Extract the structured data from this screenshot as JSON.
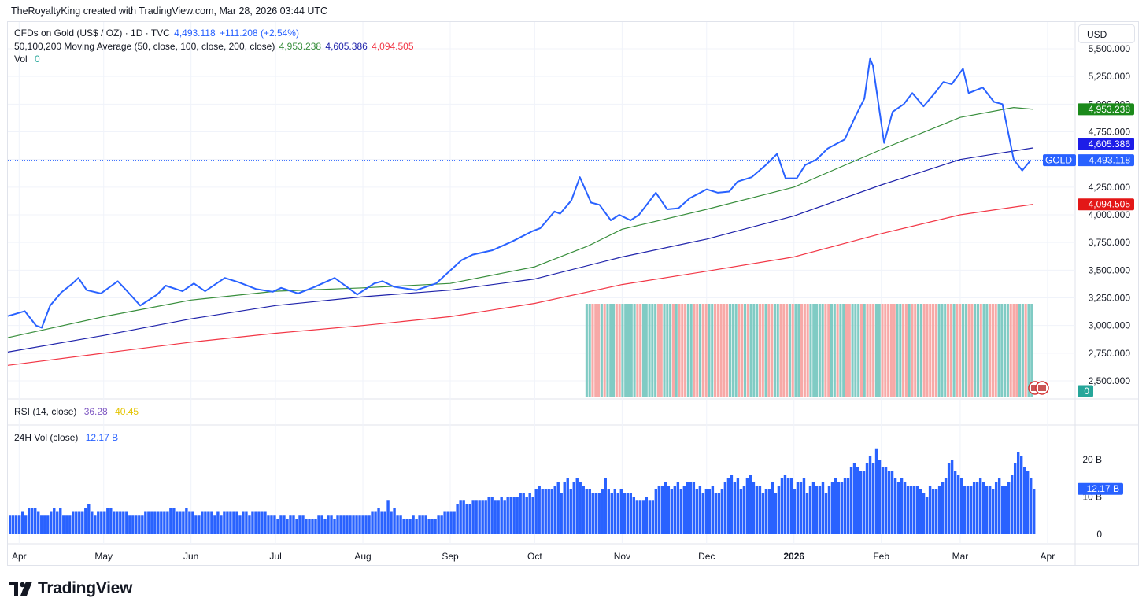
{
  "caption": "TheRoyaltyKing created with TradingView.com, Mar 28, 2026 03:44 UTC",
  "currency_button": "USD",
  "brand": "TradingView",
  "legend": {
    "symbol_title": "CFDs on Gold (US$ / OZ) · 1D · TVC",
    "symbol_price": "4,493.118",
    "symbol_change": "+111.208 (+2.54%)",
    "ma_title": "50,100,200 Moving Average (50, close, 100, close, 200, close)",
    "ma50": "4,953.238",
    "ma100": "4,605.386",
    "ma200": "4,094.505",
    "vol_title": "Vol",
    "vol_value": "0",
    "rsi_title": "RSI (14, close)",
    "rsi_value1": "36.28",
    "rsi_value2": "40.45",
    "vol24_title": "24H Vol (close)",
    "vol24_value": "12.17 B"
  },
  "price_labels": {
    "ma50": "4,953.238",
    "ma100": "4,605.386",
    "gold_tag": "GOLD",
    "gold": "4,493.118",
    "ma200": "4,094.505",
    "vol": "0",
    "vol24": "12.17 B"
  },
  "colors": {
    "price": "#2962ff",
    "ma50": "#388e3c",
    "ma100": "#1e22aa",
    "ma200": "#f23645",
    "vol_up": "#80cbc4",
    "vol_down": "#f7a9a7",
    "vol24_bar": "#2962ff",
    "rsi_line1": "#7e57c2",
    "rsi_line2": "#e4c400",
    "grid": "#f0f3fa"
  },
  "chart_data": [
    {
      "type": "line",
      "title": "CFDs on Gold (US$ / OZ) · 1D · TVC",
      "x_ticks": [
        "Apr",
        "May",
        "Jun",
        "Jul",
        "Aug",
        "Sep",
        "Oct",
        "Nov",
        "Dec",
        "2026",
        "Feb",
        "Mar",
        "Apr"
      ],
      "y_ticks": [
        "5,500.000",
        "5,250.000",
        "5,000.000",
        "4,750.000",
        "4,500.000",
        "4,250.000",
        "4,000.000",
        "3,750.000",
        "3,500.000",
        "3,250.000",
        "3,000.000",
        "2,750.000",
        "2,500.000"
      ],
      "ylim": [
        2400,
        5550
      ],
      "date_range": [
        "2025-03-28",
        "2026-03-27"
      ],
      "grid": true,
      "series": [
        {
          "name": "Gold",
          "points": [
            [
              "2025-03-28",
              3085
            ],
            [
              "2025-04-03",
              3130
            ],
            [
              "2025-04-07",
              3000
            ],
            [
              "2025-04-09",
              2980
            ],
            [
              "2025-04-12",
              3180
            ],
            [
              "2025-04-16",
              3300
            ],
            [
              "2025-04-20",
              3380
            ],
            [
              "2025-04-22",
              3430
            ],
            [
              "2025-04-25",
              3320
            ],
            [
              "2025-04-30",
              3290
            ],
            [
              "2025-05-06",
              3400
            ],
            [
              "2025-05-09",
              3320
            ],
            [
              "2025-05-14",
              3180
            ],
            [
              "2025-05-20",
              3280
            ],
            [
              "2025-05-23",
              3360
            ],
            [
              "2025-05-29",
              3310
            ],
            [
              "2025-06-02",
              3380
            ],
            [
              "2025-06-06",
              3310
            ],
            [
              "2025-06-13",
              3430
            ],
            [
              "2025-06-18",
              3390
            ],
            [
              "2025-06-24",
              3330
            ],
            [
              "2025-06-30",
              3305
            ],
            [
              "2025-07-03",
              3340
            ],
            [
              "2025-07-09",
              3290
            ],
            [
              "2025-07-15",
              3350
            ],
            [
              "2025-07-22",
              3430
            ],
            [
              "2025-07-30",
              3280
            ],
            [
              "2025-08-05",
              3380
            ],
            [
              "2025-08-08",
              3400
            ],
            [
              "2025-08-12",
              3350
            ],
            [
              "2025-08-20",
              3320
            ],
            [
              "2025-08-27",
              3380
            ],
            [
              "2025-09-02",
              3520
            ],
            [
              "2025-09-05",
              3590
            ],
            [
              "2025-09-09",
              3640
            ],
            [
              "2025-09-16",
              3680
            ],
            [
              "2025-09-23",
              3760
            ],
            [
              "2025-09-30",
              3850
            ],
            [
              "2025-10-03",
              3880
            ],
            [
              "2025-10-08",
              4030
            ],
            [
              "2025-10-10",
              4010
            ],
            [
              "2025-10-14",
              4130
            ],
            [
              "2025-10-17",
              4340
            ],
            [
              "2025-10-21",
              4110
            ],
            [
              "2025-10-24",
              4090
            ],
            [
              "2025-10-28",
              3950
            ],
            [
              "2025-10-31",
              4000
            ],
            [
              "2025-11-04",
              3950
            ],
            [
              "2025-11-07",
              4000
            ],
            [
              "2025-11-13",
              4200
            ],
            [
              "2025-11-17",
              4050
            ],
            [
              "2025-11-21",
              4060
            ],
            [
              "2025-11-25",
              4150
            ],
            [
              "2025-12-01",
              4230
            ],
            [
              "2025-12-05",
              4200
            ],
            [
              "2025-12-09",
              4210
            ],
            [
              "2025-12-12",
              4300
            ],
            [
              "2025-12-17",
              4340
            ],
            [
              "2025-12-22",
              4450
            ],
            [
              "2025-12-26",
              4550
            ],
            [
              "2025-12-29",
              4330
            ],
            [
              "2026-01-02",
              4330
            ],
            [
              "2026-01-05",
              4450
            ],
            [
              "2026-01-09",
              4500
            ],
            [
              "2026-01-13",
              4600
            ],
            [
              "2026-01-19",
              4680
            ],
            [
              "2026-01-23",
              4900
            ],
            [
              "2026-01-26",
              5050
            ],
            [
              "2026-01-28",
              5410
            ],
            [
              "2026-01-29",
              5350
            ],
            [
              "2026-02-02",
              4650
            ],
            [
              "2026-02-05",
              4930
            ],
            [
              "2026-02-09",
              5000
            ],
            [
              "2026-02-12",
              5100
            ],
            [
              "2026-02-16",
              4980
            ],
            [
              "2026-02-20",
              5100
            ],
            [
              "2026-02-23",
              5200
            ],
            [
              "2026-02-26",
              5180
            ],
            [
              "2026-03-02",
              5320
            ],
            [
              "2026-03-04",
              5100
            ],
            [
              "2026-03-09",
              5150
            ],
            [
              "2026-03-13",
              5020
            ],
            [
              "2026-03-16",
              5000
            ],
            [
              "2026-03-20",
              4500
            ],
            [
              "2026-03-23",
              4400
            ],
            [
              "2026-03-26",
              4493
            ]
          ]
        },
        {
          "name": "MA 50",
          "points": [
            [
              "2025-03-28",
              2890
            ],
            [
              "2025-05-01",
              3080
            ],
            [
              "2025-06-01",
              3230
            ],
            [
              "2025-07-01",
              3310
            ],
            [
              "2025-08-01",
              3340
            ],
            [
              "2025-09-01",
              3380
            ],
            [
              "2025-10-01",
              3530
            ],
            [
              "2025-10-20",
              3720
            ],
            [
              "2025-11-01",
              3870
            ],
            [
              "2025-12-01",
              4050
            ],
            [
              "2026-01-01",
              4250
            ],
            [
              "2026-02-01",
              4590
            ],
            [
              "2026-03-01",
              4880
            ],
            [
              "2026-03-20",
              4970
            ],
            [
              "2026-03-27",
              4953
            ]
          ]
        },
        {
          "name": "MA 100",
          "points": [
            [
              "2025-03-28",
              2760
            ],
            [
              "2025-05-01",
              2910
            ],
            [
              "2025-06-01",
              3060
            ],
            [
              "2025-07-01",
              3180
            ],
            [
              "2025-08-01",
              3260
            ],
            [
              "2025-09-01",
              3320
            ],
            [
              "2025-10-01",
              3420
            ],
            [
              "2025-11-01",
              3620
            ],
            [
              "2025-12-01",
              3780
            ],
            [
              "2026-01-01",
              3990
            ],
            [
              "2026-02-01",
              4270
            ],
            [
              "2026-03-01",
              4500
            ],
            [
              "2026-03-27",
              4605
            ]
          ]
        },
        {
          "name": "MA 200",
          "points": [
            [
              "2025-03-28",
              2640
            ],
            [
              "2025-05-01",
              2750
            ],
            [
              "2025-06-01",
              2850
            ],
            [
              "2025-07-01",
              2930
            ],
            [
              "2025-08-01",
              3000
            ],
            [
              "2025-09-01",
              3080
            ],
            [
              "2025-10-01",
              3200
            ],
            [
              "2025-11-01",
              3370
            ],
            [
              "2025-12-01",
              3490
            ],
            [
              "2026-01-01",
              3620
            ],
            [
              "2026-02-01",
              3830
            ],
            [
              "2026-03-01",
              4000
            ],
            [
              "2026-03-27",
              4095
            ]
          ]
        }
      ]
    },
    {
      "type": "bar",
      "title": "24H Vol (close)",
      "y_ticks": [
        "20 B",
        "10 B",
        "0"
      ],
      "ylim": [
        0,
        30
      ],
      "unit": "B",
      "values": [
        5,
        5,
        5,
        5,
        6,
        5,
        7,
        7,
        7,
        6,
        5,
        5,
        5,
        6,
        7,
        6,
        7,
        5,
        5,
        5,
        6,
        6,
        6,
        6,
        7,
        8,
        6,
        5,
        6,
        6,
        6,
        7,
        7,
        6,
        6,
        6,
        6,
        6,
        5,
        5,
        5,
        5,
        5,
        6,
        6,
        6,
        6,
        6,
        6,
        6,
        6,
        7,
        7,
        6,
        6,
        6,
        7,
        6,
        6,
        5,
        5,
        6,
        6,
        6,
        6,
        5,
        6,
        5,
        6,
        6,
        6,
        6,
        6,
        5,
        6,
        6,
        5,
        6,
        6,
        6,
        6,
        6,
        5,
        5,
        5,
        4,
        5,
        5,
        4,
        5,
        5,
        4,
        5,
        5,
        4,
        4,
        4,
        4,
        5,
        5,
        4,
        5,
        5,
        4,
        5,
        5,
        5,
        5,
        5,
        5,
        5,
        5,
        5,
        5,
        5,
        6,
        6,
        7,
        6,
        6,
        9,
        6,
        7,
        5,
        5,
        4,
        4,
        4,
        5,
        4,
        5,
        5,
        5,
        4,
        4,
        4,
        5,
        5,
        6,
        6,
        6,
        6,
        8,
        9,
        9,
        8,
        8,
        9,
        9,
        9,
        9,
        9,
        10,
        10,
        9,
        9,
        10,
        9,
        10,
        10,
        10,
        10,
        11,
        11,
        10,
        11,
        10,
        12,
        13,
        12,
        12,
        12,
        12,
        13,
        14,
        11,
        14,
        15,
        12,
        14,
        15,
        14,
        13,
        12,
        12,
        11,
        11,
        11,
        12,
        15,
        12,
        11,
        12,
        11,
        12,
        11,
        11,
        11,
        10,
        9,
        9,
        9,
        10,
        9,
        9,
        12,
        13,
        13,
        14,
        13,
        12,
        13,
        14,
        12,
        13,
        14,
        14,
        14,
        12,
        13,
        11,
        12,
        12,
        13,
        11,
        11,
        12,
        14,
        15,
        16,
        14,
        15,
        12,
        13,
        15,
        16,
        14,
        13,
        13,
        11,
        12,
        12,
        14,
        11,
        13,
        15,
        16,
        15,
        15,
        12,
        14,
        14,
        15,
        11,
        13,
        14,
        13,
        13,
        14,
        11,
        13,
        14,
        15,
        14,
        14,
        15,
        15,
        18,
        19,
        18,
        17,
        17,
        19,
        21,
        19,
        23,
        20,
        18,
        18,
        17,
        17,
        15,
        14,
        15,
        14,
        13,
        13,
        13,
        13,
        12,
        11,
        10,
        13,
        12,
        12,
        13,
        14,
        15,
        19,
        20,
        17,
        16,
        15,
        13,
        13,
        13,
        14,
        14,
        15,
        14,
        13,
        13,
        12,
        14,
        15,
        13,
        13,
        14,
        16,
        19,
        22,
        21,
        18,
        17,
        15,
        12
      ]
    }
  ]
}
